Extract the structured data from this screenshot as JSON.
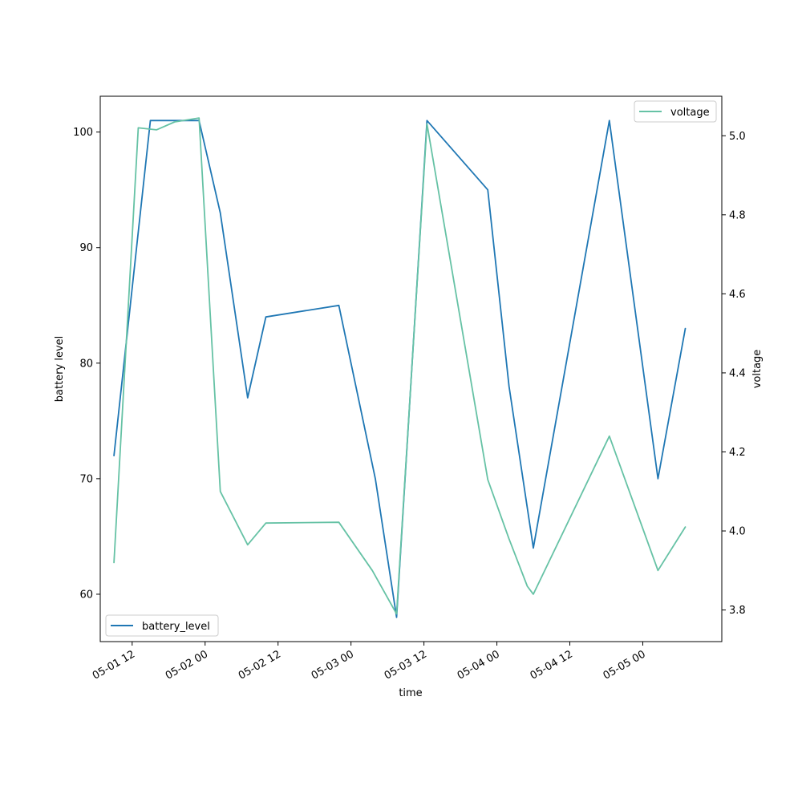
{
  "chart_data": {
    "type": "line",
    "xlabel": "time",
    "ylabel_left": "battery level",
    "ylabel_right": "voltage",
    "x_ticks": [
      "05-01 12",
      "05-02 00",
      "05-02 12",
      "05-03 00",
      "05-03 12",
      "05-04 00",
      "05-04 12",
      "05-05 00"
    ],
    "left_axis": {
      "range": [
        55.9,
        103.1
      ],
      "ticks": [
        "60",
        "70",
        "80",
        "90",
        "100"
      ]
    },
    "right_axis": {
      "range": [
        3.72,
        5.1
      ],
      "ticks": [
        "3.8",
        "4.0",
        "4.2",
        "4.4",
        "4.6",
        "4.8",
        "5.0"
      ]
    },
    "x_range": [
      "2025-05-01T06:45",
      "2025-05-05T13:00"
    ],
    "series": [
      {
        "name": "battery_level",
        "axis": "left",
        "color": "#1f77b4",
        "legend": "lower-left",
        "x": [
          "2025-05-01T09:00",
          "2025-05-01T15:00",
          "2025-05-01T21:00",
          "2025-05-01T23:00",
          "2025-05-02T02:30",
          "2025-05-02T07:00",
          "2025-05-02T10:00",
          "2025-05-02T22:00",
          "2025-05-03T04:00",
          "2025-05-03T07:30",
          "2025-05-03T12:30",
          "2025-05-03T22:30",
          "2025-05-04T02:00",
          "2025-05-04T06:00",
          "2025-05-04T18:30",
          "2025-05-05T02:30",
          "2025-05-05T07:00"
        ],
        "values": [
          72,
          101,
          101,
          101,
          93,
          77,
          84,
          85,
          70,
          58,
          101,
          95,
          78,
          64,
          101,
          70,
          83
        ]
      },
      {
        "name": "voltage",
        "axis": "right",
        "color": "#66c2a5",
        "legend": "top-right",
        "x": [
          "2025-05-01T09:00",
          "2025-05-01T13:00",
          "2025-05-01T16:00",
          "2025-05-01T19:00",
          "2025-05-01T23:00",
          "2025-05-02T02:30",
          "2025-05-02T07:00",
          "2025-05-02T10:00",
          "2025-05-02T22:00",
          "2025-05-03T03:30",
          "2025-05-03T07:30",
          "2025-05-03T12:30",
          "2025-05-03T22:30",
          "2025-05-04T02:00",
          "2025-05-04T05:00",
          "2025-05-04T06:00",
          "2025-05-04T18:30",
          "2025-05-05T02:30",
          "2025-05-05T07:00"
        ],
        "values": [
          3.92,
          5.02,
          5.015,
          5.035,
          5.045,
          4.1,
          3.965,
          4.02,
          4.022,
          3.9,
          3.79,
          5.03,
          4.13,
          3.98,
          3.86,
          3.84,
          4.24,
          3.9,
          4.01
        ]
      }
    ]
  }
}
